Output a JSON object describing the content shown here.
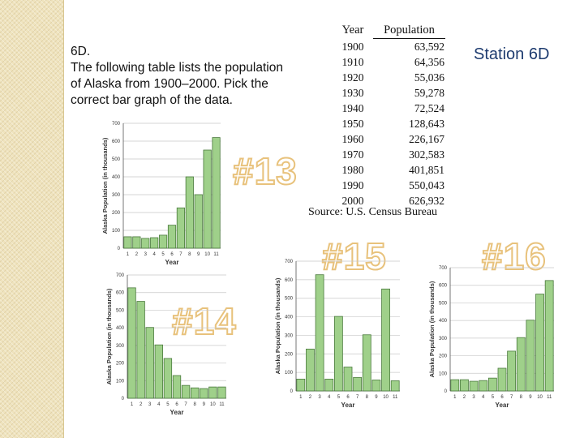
{
  "question": {
    "lines": [
      "6D.",
      "The following table lists the population",
      "of Alaska from 1900–2000. Pick the",
      "correct bar graph of the data."
    ]
  },
  "station": "Station 6D",
  "table": {
    "headers": [
      "Year",
      "Population"
    ],
    "rows": [
      [
        "1900",
        "63,592"
      ],
      [
        "1910",
        "64,356"
      ],
      [
        "1920",
        "55,036"
      ],
      [
        "1930",
        "59,278"
      ],
      [
        "1940",
        "72,524"
      ],
      [
        "1950",
        "128,643"
      ],
      [
        "1960",
        "226,167"
      ],
      [
        "1970",
        "302,583"
      ],
      [
        "1980",
        "401,851"
      ],
      [
        "1990",
        "550,043"
      ],
      [
        "2000",
        "626,932"
      ]
    ],
    "source": "Source: U.S. Census Bureau"
  },
  "option_labels": {
    "o13": "#13",
    "o14": "#14",
    "o15": "#15",
    "o16": "#16"
  },
  "colors": {
    "bar_fill": "#9fd08a",
    "bar_stroke": "#4a7a3c",
    "grid": "#c9c9c9",
    "label_outline": "#e8c27c",
    "station_text": "#1d3b6f"
  },
  "chart_data": [
    {
      "type": "bar",
      "option": "#13",
      "categories": [
        "1",
        "2",
        "3",
        "4",
        "5",
        "6",
        "7",
        "8",
        "9",
        "10",
        "11"
      ],
      "values": [
        64,
        64,
        55,
        59,
        73,
        129,
        226,
        400,
        300,
        550,
        620
      ],
      "xlabel": "Year",
      "ylabel": "Alaska Population (in thousands)",
      "yticks": [
        "0",
        "100",
        "200",
        "300",
        "400",
        "500",
        "600",
        "700"
      ],
      "ylim": [
        0,
        700
      ],
      "grid": true
    },
    {
      "type": "bar",
      "option": "#14",
      "categories": [
        "1",
        "2",
        "3",
        "4",
        "5",
        "6",
        "7",
        "8",
        "9",
        "10",
        "11"
      ],
      "values": [
        627,
        550,
        402,
        303,
        226,
        129,
        73,
        59,
        55,
        64,
        64
      ],
      "xlabel": "Year",
      "ylabel": "Alaska Population (in thousands)",
      "yticks": [
        "0",
        "100",
        "200",
        "300",
        "400",
        "500",
        "600",
        "700"
      ],
      "ylim": [
        0,
        700
      ],
      "grid": true
    },
    {
      "type": "bar",
      "option": "#15",
      "categories": [
        "1",
        "2",
        "3",
        "4",
        "5",
        "6",
        "7",
        "8",
        "9",
        "10",
        "11"
      ],
      "values": [
        64,
        226,
        627,
        64,
        402,
        129,
        73,
        303,
        59,
        550,
        55
      ],
      "xlabel": "Year",
      "ylabel": "Alaska Population (in thousands)",
      "yticks": [
        "0",
        "100",
        "200",
        "300",
        "400",
        "500",
        "600",
        "700"
      ],
      "ylim": [
        0,
        700
      ],
      "grid": true
    },
    {
      "type": "bar",
      "option": "#16",
      "categories": [
        "1",
        "2",
        "3",
        "4",
        "5",
        "6",
        "7",
        "8",
        "9",
        "10",
        "11"
      ],
      "values": [
        64,
        64,
        55,
        59,
        73,
        129,
        226,
        303,
        402,
        550,
        627
      ],
      "xlabel": "Year",
      "ylabel": "Alaska Population (in thousands)",
      "yticks": [
        "0",
        "100",
        "200",
        "300",
        "400",
        "500",
        "600",
        "700"
      ],
      "ylim": [
        0,
        700
      ],
      "grid": true
    }
  ]
}
